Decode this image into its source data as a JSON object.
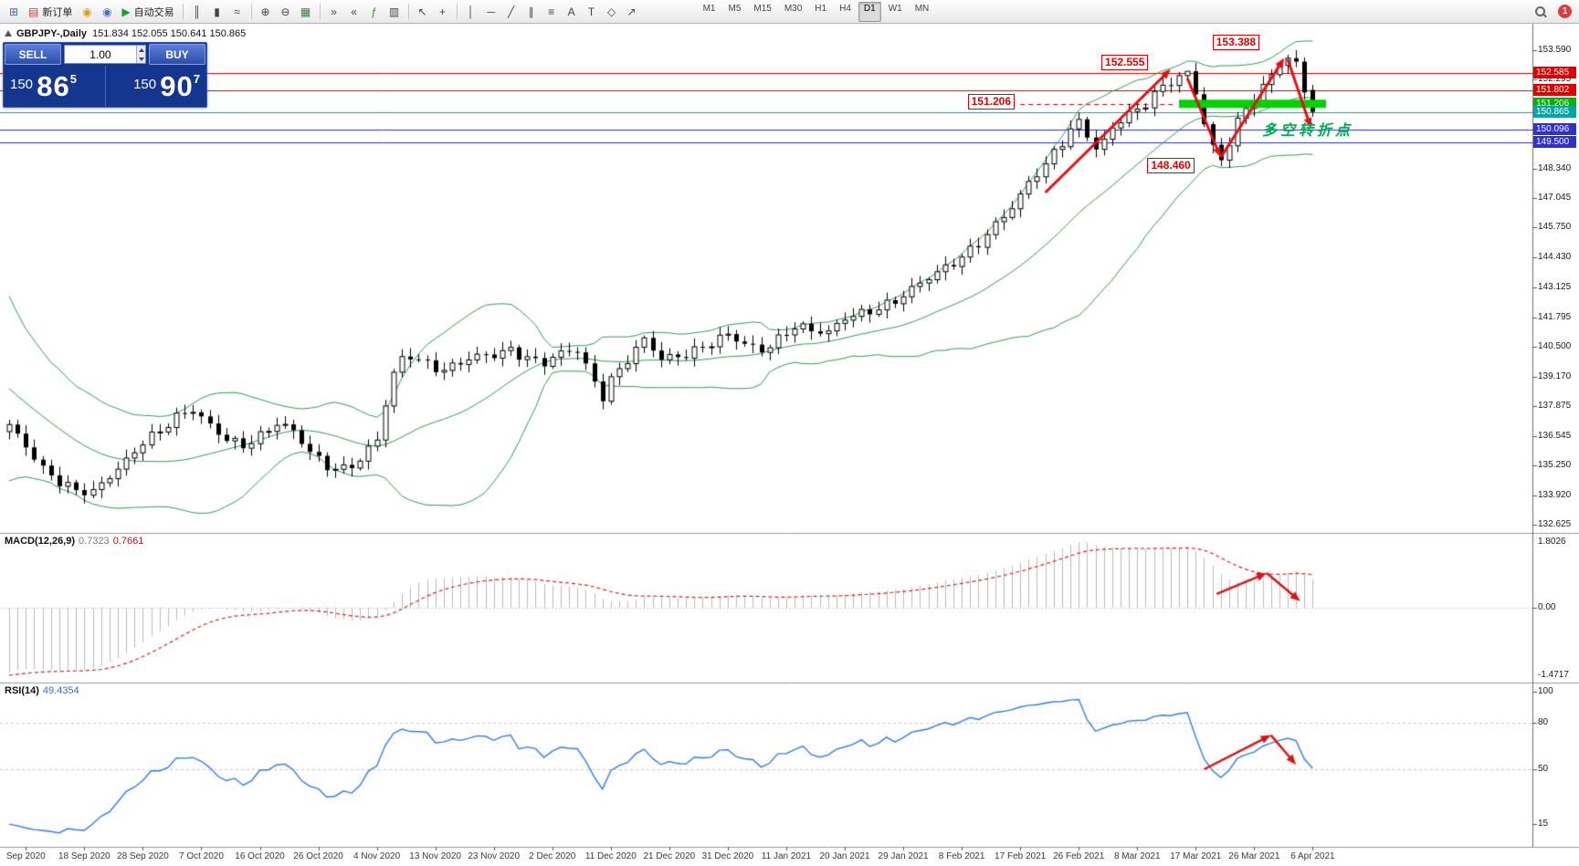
{
  "toolbar": {
    "notification": "1",
    "active_timeframe": "D1",
    "timeframes": [
      "M1",
      "M5",
      "M15",
      "M30",
      "H1",
      "H4",
      "D1",
      "W1",
      "MN"
    ],
    "icons": [
      {
        "name": "new-chart-icon",
        "glyph": "⊞",
        "color": "#356fad"
      },
      {
        "name": "new-order-button",
        "glyph": "▤",
        "color": "#c43b3b",
        "label": "新订单"
      },
      {
        "name": "mql5-icon",
        "glyph": "◉",
        "color": "#d6a400"
      },
      {
        "name": "community-icon",
        "glyph": "◉",
        "color": "#3a6fd0"
      },
      {
        "name": "autotrading-button",
        "glyph": "▶",
        "color": "#1ca41c",
        "label": "自动交易"
      },
      {
        "sep": true
      },
      {
        "name": "bar-chart-icon",
        "glyph": "║",
        "color": "#444444"
      },
      {
        "name": "candlestick-chart-icon",
        "glyph": "▮",
        "color": "#444444"
      },
      {
        "name": "line-chart-icon",
        "glyph": "≈",
        "color": "#444444"
      },
      {
        "sep": true
      },
      {
        "name": "zoom-in-icon",
        "glyph": "⊕",
        "color": "#444444"
      },
      {
        "name": "zoom-out-icon",
        "glyph": "⊖",
        "color": "#444444"
      },
      {
        "name": "tile-windows-icon",
        "glyph": "▦",
        "color": "#3a7d3a"
      },
      {
        "sep": true
      },
      {
        "name": "auto-scroll-icon",
        "glyph": "»",
        "color": "#444444"
      },
      {
        "name": "chart-shift-icon",
        "glyph": "«",
        "color": "#444444"
      },
      {
        "name": "indicators-icon",
        "glyph": "ƒ",
        "color": "#2f8f2f"
      },
      {
        "name": "periods-icon",
        "glyph": "▥",
        "color": "#444444"
      },
      {
        "sep": true
      },
      {
        "name": "cursor-icon",
        "glyph": "↖",
        "color": "#444444"
      },
      {
        "name": "crosshair-icon",
        "glyph": "+",
        "color": "#444444"
      },
      {
        "sep": true
      },
      {
        "name": "vertical-line-icon",
        "glyph": "│",
        "color": "#444444"
      },
      {
        "name": "horizontal-line-icon",
        "glyph": "─",
        "color": "#444444"
      },
      {
        "name": "trendline-icon",
        "glyph": "╱",
        "color": "#444444"
      },
      {
        "name": "channel-icon",
        "glyph": "∥",
        "color": "#444444"
      },
      {
        "name": "fibonacci-icon",
        "glyph": "≡",
        "color": "#444444"
      },
      {
        "name": "text-icon",
        "glyph": "A",
        "color": "#444444"
      },
      {
        "name": "label-icon",
        "glyph": "T",
        "color": "#444444"
      },
      {
        "name": "shapes-icon",
        "glyph": "◇",
        "color": "#444444"
      },
      {
        "name": "arrow-tools-icon",
        "glyph": "↗",
        "color": "#444444"
      },
      {
        "spacer": 60
      }
    ]
  },
  "chart": {
    "title": "GBPJPY-,Daily",
    "ohlc": "151.834 152.055 150.641 150.865"
  },
  "trade": {
    "sell_label": "SELL",
    "buy_label": "BUY",
    "volume": "1.00",
    "sell_prefix": "150 ",
    "sell_main": "86",
    "sell_sup": "5",
    "buy_prefix": "150 ",
    "buy_main": "90",
    "buy_sup": "7"
  },
  "macd": {
    "name": "MACD(12,26,9)",
    "v1": "0.7323",
    "v2": "0.7661",
    "scale_top": "1.8026",
    "scale_zero": "0.00",
    "scale_bottom": "-1.4717"
  },
  "rsi": {
    "name": "RSI(14)",
    "value": "49.4354",
    "levels": [
      80,
      50
    ],
    "scale": [
      {
        "text": "100",
        "value": 100
      },
      {
        "text": "80",
        "value": 80
      },
      {
        "text": "50",
        "value": 50
      },
      {
        "text": "15",
        "value": 15
      }
    ]
  },
  "note": {
    "text": "多空转折点"
  },
  "chart_data": {
    "type": "candlestick",
    "symbol": "GBPJPY-",
    "timeframe": "Daily",
    "bollinger": {
      "period": 20,
      "deviation": 2
    },
    "macd_params": {
      "fast": 12,
      "slow": 26,
      "signal": 9
    },
    "rsi_period": 14,
    "pre_anchors": [
      [
        -25,
        146.0
      ],
      [
        -22,
        144.5
      ],
      [
        -19,
        143.0
      ],
      [
        -16,
        141.0
      ],
      [
        -13,
        139.5
      ],
      [
        -10,
        138.0
      ],
      [
        -7,
        137.0
      ],
      [
        -4,
        136.6
      ],
      [
        -1,
        136.8
      ]
    ],
    "anchors": [
      [
        0,
        136.9
      ],
      [
        2,
        136.1
      ],
      [
        4,
        135.2
      ],
      [
        6,
        134.6
      ],
      [
        8,
        134.1
      ],
      [
        10,
        133.95
      ],
      [
        12,
        134.7
      ],
      [
        14,
        135.5
      ],
      [
        16,
        136.4
      ],
      [
        18,
        136.8
      ],
      [
        20,
        137.3
      ],
      [
        22,
        137.6
      ],
      [
        24,
        137.0
      ],
      [
        26,
        136.5
      ],
      [
        28,
        136.2
      ],
      [
        30,
        136.5
      ],
      [
        32,
        137.0
      ],
      [
        34,
        136.7
      ],
      [
        36,
        135.9
      ],
      [
        38,
        135.3
      ],
      [
        40,
        135.1
      ],
      [
        42,
        135.4
      ],
      [
        44,
        136.3
      ],
      [
        45,
        137.9
      ],
      [
        46,
        139.3
      ],
      [
        47,
        140.0
      ],
      [
        48,
        140.2
      ],
      [
        50,
        139.8
      ],
      [
        52,
        139.4
      ],
      [
        54,
        139.7
      ],
      [
        56,
        140.0
      ],
      [
        58,
        140.2
      ],
      [
        60,
        140.45
      ],
      [
        62,
        140.0
      ],
      [
        64,
        139.7
      ],
      [
        66,
        140.1
      ],
      [
        68,
        140.35
      ],
      [
        70,
        139.0
      ],
      [
        71,
        138.4
      ],
      [
        72,
        139.1
      ],
      [
        74,
        139.9
      ],
      [
        76,
        140.7
      ],
      [
        78,
        139.9
      ],
      [
        80,
        140.1
      ],
      [
        82,
        140.4
      ],
      [
        84,
        140.7
      ],
      [
        86,
        140.95
      ],
      [
        88,
        140.5
      ],
      [
        90,
        140.3
      ],
      [
        92,
        140.9
      ],
      [
        94,
        141.5
      ],
      [
        96,
        141.2
      ],
      [
        98,
        141.0
      ],
      [
        100,
        141.7
      ],
      [
        102,
        142.0
      ],
      [
        104,
        142.3
      ],
      [
        106,
        142.55
      ],
      [
        108,
        142.95
      ],
      [
        110,
        143.45
      ],
      [
        112,
        143.95
      ],
      [
        114,
        144.55
      ],
      [
        116,
        145.15
      ],
      [
        118,
        145.85
      ],
      [
        120,
        146.55
      ],
      [
        121,
        147.05
      ],
      [
        122,
        147.65
      ],
      [
        123,
        148.15
      ],
      [
        124,
        148.55
      ],
      [
        125,
        149.15
      ],
      [
        126,
        149.65
      ],
      [
        127,
        150.15
      ],
      [
        128,
        150.45
      ],
      [
        129,
        149.85
      ],
      [
        130,
        149.15
      ],
      [
        131,
        149.45
      ],
      [
        132,
        150.05
      ],
      [
        133,
        150.45
      ],
      [
        134,
        150.75
      ],
      [
        135,
        150.95
      ],
      [
        136,
        151.35
      ],
      [
        137,
        151.75
      ],
      [
        138,
        152.05
      ],
      [
        139,
        152.25
      ],
      [
        140,
        152.4
      ],
      [
        141,
        152.5
      ],
      [
        142,
        151.6
      ],
      [
        143,
        150.3
      ],
      [
        144,
        149.2
      ],
      [
        145,
        148.7
      ],
      [
        146,
        149.6
      ],
      [
        147,
        150.5
      ],
      [
        148,
        151.1
      ],
      [
        149,
        151.6
      ],
      [
        150,
        152.0
      ],
      [
        151,
        152.45
      ],
      [
        152,
        152.95
      ],
      [
        153,
        153.15
      ],
      [
        154,
        152.85
      ],
      [
        155,
        151.7
      ],
      [
        156,
        150.865
      ]
    ],
    "overrides": {
      "141": {
        "h": 152.555
      },
      "145": {
        "l": 148.46
      },
      "153": {
        "h": 153.388
      },
      "156": {
        "o": 151.834,
        "h": 152.055,
        "l": 150.641,
        "c": 150.865
      }
    },
    "levels": [
      {
        "price": 152.585,
        "color": "#dd0000"
      },
      {
        "price": 151.802,
        "color": "#dd0000"
      },
      {
        "price": 150.865,
        "color": "#00a6a6"
      },
      {
        "price": 150.096,
        "color": "#3030cc"
      },
      {
        "price": 149.5,
        "color": "#3030cc"
      }
    ],
    "dashed_level": {
      "from_bar": 121,
      "to_bar": 139.5,
      "price": 151.206,
      "color": "#dd0000"
    },
    "highlight": {
      "from_bar": 140,
      "to_bar": 157.6,
      "price": 151.22,
      "height": 9,
      "color": "#00d300"
    },
    "badges": [
      {
        "text": "152.585",
        "price": 152.585,
        "bg": "#dd0000"
      },
      {
        "text": "151.802",
        "price": 151.802,
        "bg": "#dd0000"
      },
      {
        "text": "151.206",
        "price": 151.206,
        "bg": "#00b300"
      },
      {
        "text": "150.865",
        "price": 150.865,
        "bg": "#00a6a6"
      },
      {
        "text": "150.096",
        "price": 150.096,
        "bg": "#3030cc"
      },
      {
        "text": "149.500",
        "price": 149.5,
        "bg": "#3030cc"
      }
    ],
    "axis_labels": [
      {
        "text": "153.590",
        "price": 153.59
      },
      {
        "text": "152.295",
        "price": 152.295
      },
      {
        "text": "148.340",
        "price": 148.34
      },
      {
        "text": "147.045",
        "price": 147.045
      },
      {
        "text": "145.750",
        "price": 145.75
      },
      {
        "text": "144.430",
        "price": 144.43
      },
      {
        "text": "143.125",
        "price": 143.125
      },
      {
        "text": "141.795",
        "price": 141.795
      },
      {
        "text": "140.500",
        "price": 140.5
      },
      {
        "text": "139.170",
        "price": 139.17
      },
      {
        "text": "137.875",
        "price": 137.875
      },
      {
        "text": "136.545",
        "price": 136.545
      },
      {
        "text": "135.250",
        "price": 135.25
      },
      {
        "text": "133.920",
        "price": 133.92
      },
      {
        "text": "132.625",
        "price": 132.625
      }
    ],
    "annotations": [
      {
        "text": "152.555",
        "bar": 133.5,
        "price": 153.05
      },
      {
        "text": "153.388",
        "bar": 146.8,
        "price": 153.95
      },
      {
        "text": "151.206",
        "bar": 117.5,
        "price": 151.35
      },
      {
        "text": "148.460",
        "bar": 139.0,
        "price": 148.52
      }
    ],
    "arrows": [
      {
        "panel": "main",
        "from": [
          124,
          147.3
        ],
        "to": [
          139,
          152.75
        ]
      },
      {
        "panel": "main",
        "from": [
          141,
          152.35
        ],
        "to": [
          145,
          148.85
        ]
      },
      {
        "panel": "main",
        "from": [
          145,
          148.85
        ],
        "to": [
          152.6,
          153.25
        ]
      },
      {
        "panel": "main",
        "from": [
          153,
          153.2
        ],
        "to": [
          155.8,
          150.15
        ]
      },
      {
        "panel": "macd",
        "from": [
          144.5,
          0.42
        ],
        "to": [
          150.5,
          1.05
        ]
      },
      {
        "panel": "macd",
        "from": [
          150.5,
          1.05
        ],
        "to": [
          154.5,
          0.2
        ]
      },
      {
        "panel": "rsi",
        "from": [
          143,
          50
        ],
        "to": [
          151,
          72
        ]
      },
      {
        "panel": "rsi",
        "from": [
          151,
          72
        ],
        "to": [
          154,
          53
        ]
      }
    ],
    "dates": {
      "first_bar": 2,
      "step": 7,
      "labels": [
        "Sep 2020",
        "18 Sep 2020",
        "28 Sep 2020",
        "7 Oct 2020",
        "16 Oct 2020",
        "26 Oct 2020",
        "4 Nov 2020",
        "13 Nov 2020",
        "23 Nov 2020",
        "2 Dec 2020",
        "11 Dec 2020",
        "21 Dec 2020",
        "31 Dec 2020",
        "11 Jan 2021",
        "20 Jan 2021",
        "29 Jan 2021",
        "8 Feb 2021",
        "17 Feb 2021",
        "26 Feb 2021",
        "8 Mar 2021",
        "17 Mar 2021",
        "26 Mar 2021",
        "6 Apr 2021"
      ]
    }
  }
}
